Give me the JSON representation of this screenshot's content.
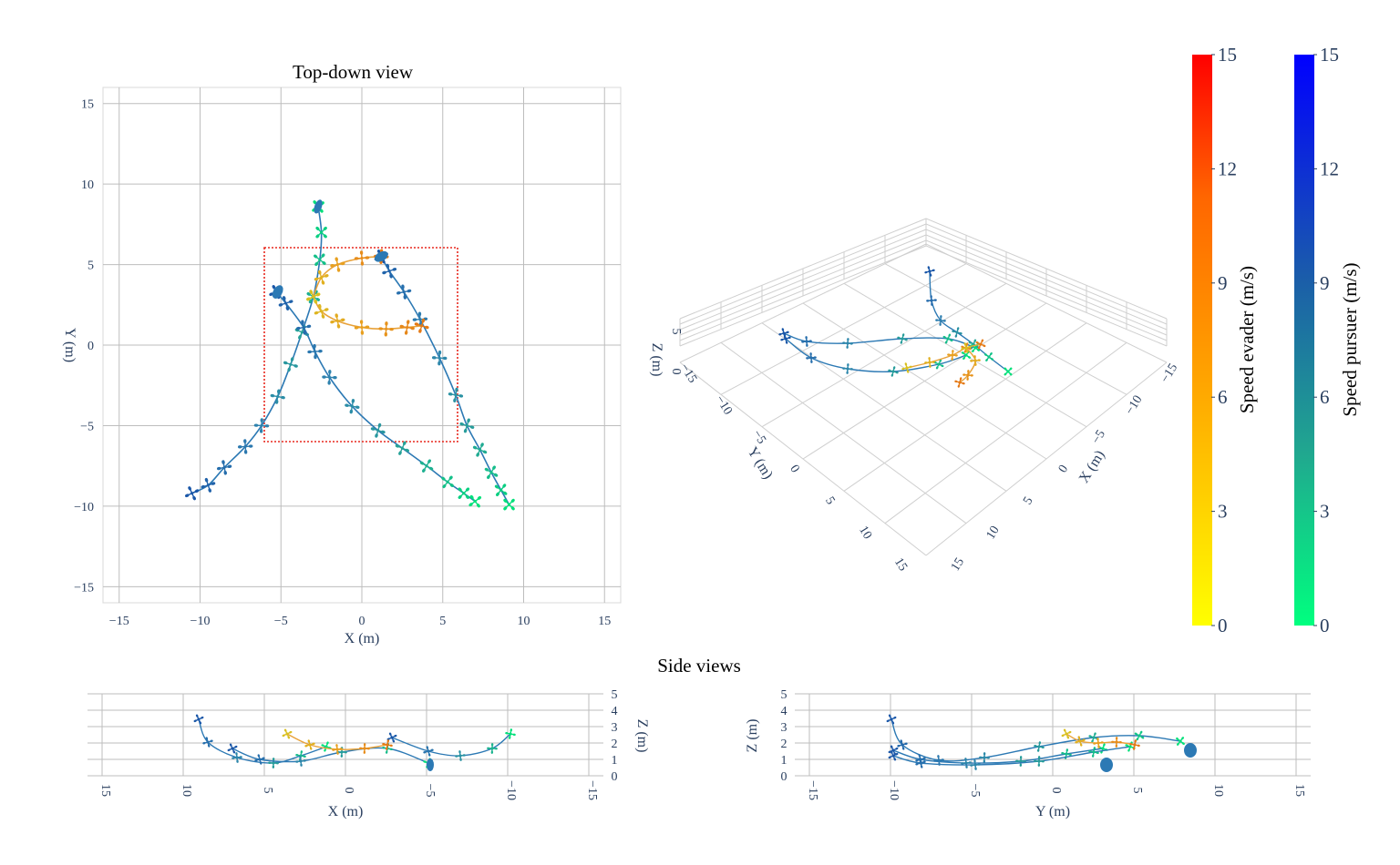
{
  "chart_data": [
    {
      "type": "scatter",
      "title": "Top-down view",
      "xlabel": "X (m)",
      "ylabel": "Y (m)",
      "xlim": [
        -16,
        16
      ],
      "ylim": [
        -16,
        16
      ],
      "xticks": [
        -15,
        -10,
        -5,
        0,
        5,
        10,
        15
      ],
      "yticks": [
        -15,
        -10,
        -5,
        0,
        5,
        10,
        15
      ],
      "grid": true,
      "arena_box": {
        "x": [
          -6,
          6
        ],
        "y": [
          -6,
          6
        ],
        "color": "#e8281e"
      },
      "series": [
        {
          "role": "pursuer",
          "points": [
            [
              -10.5,
              -9.2
            ],
            [
              -9.5,
              -8.7
            ],
            [
              -8.5,
              -7.6
            ],
            [
              -7.2,
              -6.3
            ],
            [
              -6.2,
              -5.0
            ],
            [
              -5.2,
              -3.2
            ],
            [
              -4.4,
              -1.2
            ],
            [
              -3.7,
              0.8
            ],
            [
              -3.0,
              3.0
            ],
            [
              -2.6,
              5.3
            ],
            [
              -2.5,
              7.0
            ],
            [
              -2.7,
              8.6
            ]
          ]
        },
        {
          "role": "pursuer",
          "points": [
            [
              -5.3,
              3.3
            ],
            [
              -4.7,
              2.6
            ],
            [
              -3.6,
              1.1
            ],
            [
              -2.9,
              -0.4
            ],
            [
              -2.0,
              -2.0
            ],
            [
              -0.6,
              -3.8
            ],
            [
              1.0,
              -5.3
            ],
            [
              2.5,
              -6.4
            ],
            [
              4.0,
              -7.5
            ],
            [
              5.3,
              -8.5
            ],
            [
              6.3,
              -9.2
            ],
            [
              7.0,
              -9.7
            ]
          ]
        },
        {
          "role": "pursuer",
          "points": [
            [
              1.2,
              5.5
            ],
            [
              1.7,
              4.6
            ],
            [
              2.6,
              3.3
            ],
            [
              3.6,
              1.6
            ],
            [
              4.8,
              -0.8
            ],
            [
              5.8,
              -3.1
            ],
            [
              6.5,
              -5.0
            ],
            [
              7.3,
              -6.5
            ],
            [
              8.0,
              -7.9
            ],
            [
              8.6,
              -9.0
            ],
            [
              9.1,
              -9.9
            ]
          ]
        },
        {
          "role": "evader",
          "points": [
            [
              -3.0,
              3.0
            ],
            [
              -2.5,
              2.1
            ],
            [
              -1.5,
              1.5
            ],
            [
              0.0,
              1.1
            ],
            [
              1.5,
              1.0
            ],
            [
              2.8,
              1.1
            ],
            [
              3.7,
              1.2
            ]
          ]
        },
        {
          "role": "evader",
          "points": [
            [
              -3.0,
              3.0
            ],
            [
              -2.5,
              4.2
            ],
            [
              -1.5,
              5.0
            ],
            [
              0.0,
              5.4
            ],
            [
              1.2,
              5.5
            ]
          ]
        }
      ]
    },
    {
      "type": "scatter",
      "title": "",
      "xlabel": "X (m)",
      "ylabel": "Y (m)",
      "zlabel": "Z (m)",
      "x_ticks": [
        "−15",
        "−10",
        "−5",
        "0",
        "5",
        "10",
        "15"
      ],
      "y_ticks": [
        "−15",
        "−10",
        "−5",
        "0",
        "5",
        "10",
        "15"
      ],
      "z_ticks": [
        "0",
        "5"
      ]
    },
    {
      "type": "scatter",
      "title": "Side views",
      "xlabel": "X (m)",
      "ylabel": "Z (m)",
      "xticks": [
        "15",
        "10",
        "5",
        "0",
        "−5",
        "−10",
        "−15"
      ],
      "yticks": [
        "0",
        "1",
        "2",
        "3",
        "4",
        "5"
      ],
      "ylim": [
        0,
        5
      ]
    },
    {
      "type": "scatter",
      "title": "",
      "xlabel": "Y (m)",
      "ylabel": "Z (m)",
      "xticks": [
        "−15",
        "−10",
        "−5",
        "0",
        "5",
        "10",
        "15"
      ],
      "yticks": [
        "0",
        "1",
        "2",
        "3",
        "4",
        "5"
      ],
      "ylim": [
        0,
        5
      ]
    }
  ],
  "colorbars": [
    {
      "label": "Speed evader (m/s)",
      "ticks": [
        "15",
        "12",
        "9",
        "6",
        "3",
        "0"
      ],
      "range": [
        0,
        15
      ],
      "colors": [
        "#ffff00",
        "#ffaa00",
        "#ff6600",
        "#ff0000"
      ]
    },
    {
      "label": "Speed pursuer (m/s)",
      "ticks": [
        "15",
        "12",
        "9",
        "6",
        "3",
        "0"
      ],
      "range": [
        0,
        15
      ],
      "colors": [
        "#00ff7f",
        "#20a88f",
        "#1b5fa8",
        "#0000ff"
      ]
    }
  ]
}
